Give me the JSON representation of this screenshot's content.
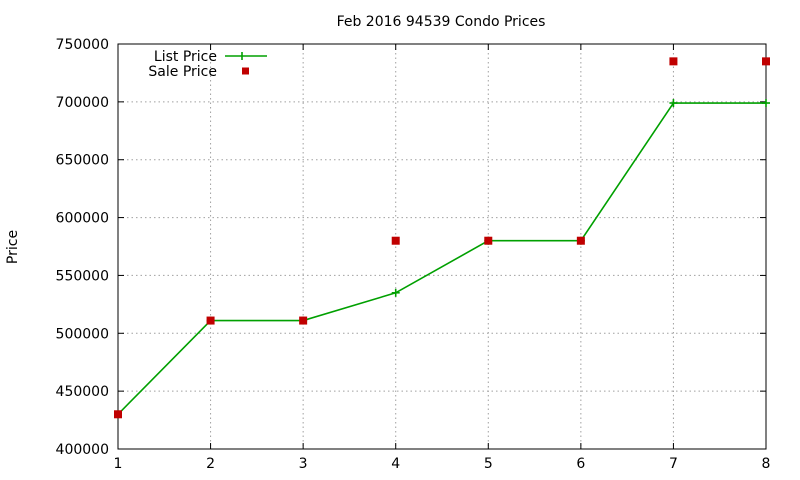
{
  "chart_data": {
    "type": "line",
    "title": "Feb 2016 94539 Condo Prices",
    "xlabel": "",
    "ylabel": "Price",
    "xlim": [
      1,
      8
    ],
    "ylim": [
      400000,
      750000
    ],
    "x_ticks": [
      1,
      2,
      3,
      4,
      5,
      6,
      7,
      8
    ],
    "y_ticks": [
      400000,
      450000,
      500000,
      550000,
      600000,
      650000,
      700000,
      750000
    ],
    "grid": true,
    "legend_position": "top-left",
    "series": [
      {
        "name": "List Price",
        "style": "line-with-crosses",
        "color": "#00a000",
        "x": [
          1,
          2,
          3,
          4,
          5,
          6,
          7,
          8
        ],
        "values": [
          430000,
          511000,
          511000,
          535000,
          580000,
          580000,
          699000,
          699000
        ]
      },
      {
        "name": "Sale Price",
        "style": "square-markers",
        "color": "#c00000",
        "x": [
          1,
          2,
          3,
          4,
          5,
          6,
          7,
          8
        ],
        "values": [
          430000,
          511000,
          511000,
          580000,
          580000,
          580000,
          735000,
          735000
        ]
      }
    ]
  }
}
